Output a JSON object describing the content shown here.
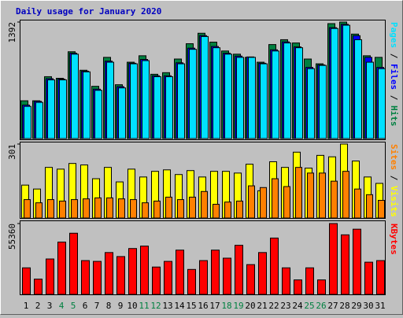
{
  "chart_data": [
    {
      "type": "bar",
      "title": "Daily usage for January 2020",
      "ylim": [
        0,
        1392
      ],
      "yticks": [
        1392
      ],
      "legend_separator": " / ",
      "series": [
        {
          "name": "Hits",
          "color": "#008040",
          "values": [
            451,
            451,
            739,
            720,
            1037,
            816,
            624,
            970,
            643,
            912,
            989,
            768,
            787,
            950,
            1133,
            1258,
            1152,
            1046,
            1008,
            970,
            912,
            1123,
            1181,
            1142,
            950,
            893,
            1373,
            1392,
            1248,
            989,
            970
          ]
        },
        {
          "name": "Files",
          "color": "#0000ff",
          "values": [
            400,
            445,
            715,
            710,
            1020,
            805,
            590,
            925,
            620,
            900,
            945,
            750,
            750,
            905,
            1080,
            1230,
            1100,
            1020,
            985,
            975,
            900,
            1060,
            1155,
            1095,
            850,
            880,
            1325,
            1365,
            1229,
            970,
            850
          ]
        },
        {
          "name": "Pages",
          "color": "#00e0ff",
          "values": [
            384,
            432,
            701,
            701,
            1008,
            797,
            576,
            912,
            605,
            893,
            931,
            739,
            739,
            893,
            1066,
            1219,
            1085,
            1008,
            970,
            970,
            893,
            1046,
            1142,
            1085,
            835,
            874,
            1315,
            1354,
            1181,
            912,
            835
          ]
        }
      ]
    },
    {
      "type": "bar",
      "ylim": [
        0,
        301
      ],
      "yticks": [
        301
      ],
      "legend_separator": " / ",
      "series": [
        {
          "name": "Visits",
          "color": "#ffff00",
          "values": [
            134,
            118,
            206,
            199,
            222,
            216,
            160,
            206,
            147,
            199,
            167,
            190,
            196,
            177,
            193,
            167,
            190,
            190,
            183,
            219,
            111,
            229,
            206,
            268,
            203,
            255,
            249,
            301,
            232,
            167,
            141
          ]
        },
        {
          "name": "Sites",
          "color": "#ff8000",
          "values": [
            75,
            62,
            75,
            69,
            75,
            78,
            82,
            82,
            78,
            75,
            62,
            69,
            85,
            75,
            85,
            108,
            56,
            65,
            69,
            131,
            124,
            160,
            128,
            206,
            183,
            183,
            150,
            190,
            118,
            95,
            72
          ]
        }
      ]
    },
    {
      "type": "bar",
      "ylim": [
        0,
        55360
      ],
      "yticks": [
        55360
      ],
      "categories": [
        "1",
        "2",
        "3",
        "4",
        "5",
        "6",
        "7",
        "8",
        "9",
        "10",
        "11",
        "12",
        "13",
        "14",
        "15",
        "16",
        "17",
        "18",
        "19",
        "20",
        "21",
        "22",
        "23",
        "24",
        "25",
        "26",
        "27",
        "28",
        "29",
        "30",
        "31"
      ],
      "weekend_indices": [
        3,
        4,
        10,
        11,
        17,
        18,
        24,
        25
      ],
      "weekend_color": "#008040",
      "series": [
        {
          "name": "KBytes",
          "color": "#ff0000",
          "values": [
            20757,
            11951,
            27676,
            40885,
            47804,
            26418,
            25789,
            32708,
            29563,
            35853,
            37740,
            21386,
            25789,
            34595,
            19499,
            26418,
            34595,
            28305,
            38369,
            23273,
            32708,
            44030,
            20757,
            11322,
            20757,
            11322,
            55360,
            46546,
            50949,
            25160,
            26418
          ]
        }
      ]
    }
  ]
}
